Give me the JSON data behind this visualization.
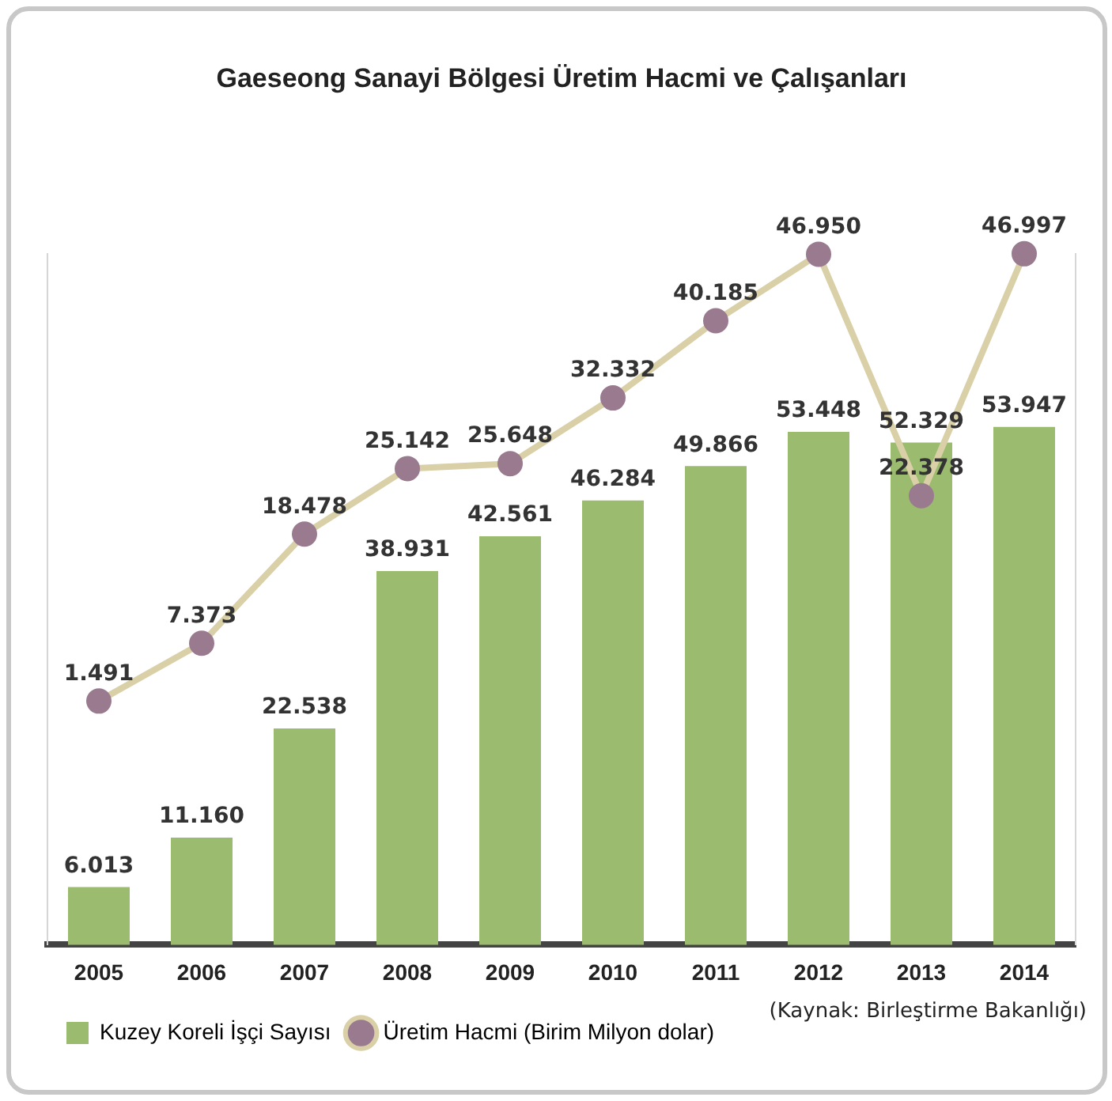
{
  "chart_data": {
    "type": "bar",
    "title": "Gaeseong Sanayi Bölgesi Üretim Hacmi ve Çalışanları",
    "categories": [
      "2005",
      "2006",
      "2007",
      "2008",
      "2009",
      "2010",
      "2011",
      "2012",
      "2013",
      "2014"
    ],
    "series": [
      {
        "name": "Kuzey Koreli İşçi Sayısı",
        "color": "#9bbb6e",
        "values": [
          6013,
          11160,
          22538,
          38931,
          42561,
          46284,
          49866,
          53448,
          52329,
          53947
        ],
        "value_labels": [
          "6.013",
          "11.160",
          "22.538",
          "38.931",
          "42.561",
          "46.284",
          "49.866",
          "53.448",
          "52.329",
          "53.947"
        ]
      },
      {
        "name": "Üretim Hacmi (Birim Milyon dolar)",
        "type": "line",
        "axis": "y2",
        "color": "#d9d0a8",
        "marker": "circle",
        "values": [
          1491,
          7373,
          18478,
          25142,
          25648,
          32332,
          40185,
          46950,
          22378,
          46997
        ],
        "value_labels": [
          "1.491",
          "7.373",
          "18.478",
          "25.142",
          "25.648",
          "32.332",
          "40.185",
          "46.950",
          "22.378",
          "46.997"
        ]
      }
    ],
    "ylim": [
      0,
      72000
    ],
    "y2lim": [
      -23300,
      47000
    ],
    "tick_labels": "x",
    "grid": false,
    "legend": "bottom left",
    "annotations": [
      "(Kaynak: Birleştirme Bakanlığı)"
    ]
  }
}
